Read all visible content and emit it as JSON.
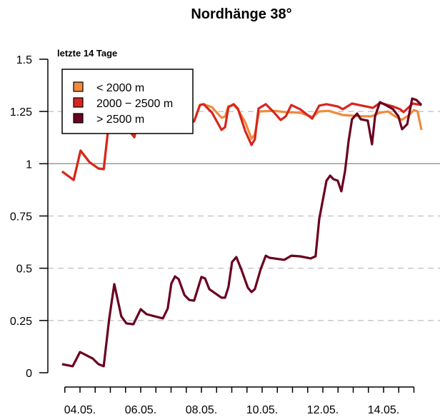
{
  "chart_data": {
    "type": "line",
    "title": "Nordhänge 38°",
    "subtitle": "letzte 14 Tage",
    "xlabel": "",
    "ylabel": "",
    "x_unit": "day of May",
    "xlim": [
      3.5,
      15.0
    ],
    "ylim": [
      0,
      1.5
    ],
    "x_tick_labels": [
      {
        "x": 4,
        "label": "04.05."
      },
      {
        "x": 6,
        "label": "06.05."
      },
      {
        "x": 8,
        "label": "08.05."
      },
      {
        "x": 10,
        "label": "10.05."
      },
      {
        "x": 12,
        "label": "12.05."
      },
      {
        "x": 14,
        "label": "14.05."
      }
    ],
    "y_ticks": [
      {
        "y": 0,
        "label": "0"
      },
      {
        "y": 0.25,
        "label": "0.25"
      },
      {
        "y": 0.5,
        "label": "0.5"
      },
      {
        "y": 0.75,
        "label": "0.75"
      },
      {
        "y": 1,
        "label": "1"
      },
      {
        "y": 1.25,
        "label": "1.25"
      },
      {
        "y": 1.5,
        "label": "1.5"
      }
    ],
    "grid": "dashed horizontal at 0.25, 0.5, 0.75, 1.25; solid reference line at 1",
    "legend_position": "top-left",
    "series": [
      {
        "name": "< 2000 m",
        "color": "#F08A3C",
        "x": [
          3.41,
          3.79,
          4.02,
          4.31,
          4.61,
          4.78,
          5.01,
          5.36,
          5.6,
          5.79,
          5.95,
          6.19,
          6.78,
          7.36,
          7.6,
          7.76,
          7.95,
          8.07,
          8.35,
          8.66,
          8.78,
          8.89,
          9.06,
          9.2,
          9.44,
          9.65,
          9.76,
          9.9,
          10.38,
          10.78,
          11.25,
          11.65,
          11.88,
          12.19,
          12.66,
          13.29,
          13.6,
          13.88,
          14.14,
          14.38,
          14.61,
          14.84,
          15.0,
          15.12,
          15.25
        ],
        "y": [
          0.963,
          0.922,
          1.063,
          1.008,
          0.977,
          0.974,
          1.271,
          1.271,
          1.162,
          1.127,
          1.237,
          1.271,
          1.271,
          1.254,
          1.196,
          1.203,
          1.281,
          1.285,
          1.27,
          1.22,
          1.225,
          1.275,
          1.28,
          1.26,
          1.2,
          1.12,
          1.14,
          1.25,
          1.253,
          1.247,
          1.244,
          1.224,
          1.25,
          1.253,
          1.233,
          1.227,
          1.227,
          1.244,
          1.25,
          1.227,
          1.21,
          1.233,
          1.257,
          1.25,
          1.162
        ]
      },
      {
        "name": "2000 − 2500 m",
        "color": "#D7261E",
        "x": [
          3.41,
          3.79,
          4.02,
          4.31,
          4.61,
          4.78,
          5.01,
          5.36,
          5.6,
          5.79,
          5.95,
          6.19,
          6.78,
          7.36,
          7.6,
          7.76,
          7.95,
          8.07,
          8.35,
          8.66,
          8.78,
          8.89,
          9.06,
          9.2,
          9.44,
          9.65,
          9.76,
          9.88,
          10.12,
          10.38,
          10.61,
          10.78,
          10.96,
          11.25,
          11.65,
          11.88,
          12.12,
          12.49,
          12.66,
          12.96,
          13.29,
          13.65,
          13.88,
          14.31,
          14.54,
          14.66,
          14.96,
          15.25
        ],
        "y": [
          0.963,
          0.922,
          1.063,
          1.008,
          0.977,
          0.974,
          1.271,
          1.271,
          1.162,
          1.127,
          1.237,
          1.271,
          1.271,
          1.254,
          1.196,
          1.203,
          1.281,
          1.285,
          1.244,
          1.162,
          1.175,
          1.271,
          1.285,
          1.264,
          1.158,
          1.09,
          1.117,
          1.264,
          1.285,
          1.247,
          1.209,
          1.227,
          1.281,
          1.261,
          1.216,
          1.278,
          1.285,
          1.274,
          1.261,
          1.288,
          1.278,
          1.267,
          1.291,
          1.274,
          1.261,
          1.247,
          1.288,
          1.281
        ]
      },
      {
        "name": "> 2500 m",
        "color": "#6B0020",
        "x": [
          3.41,
          3.76,
          4.0,
          4.42,
          4.61,
          4.78,
          4.96,
          5.13,
          5.36,
          5.53,
          5.76,
          6.0,
          6.19,
          6.73,
          6.89,
          7.01,
          7.13,
          7.25,
          7.44,
          7.6,
          7.76,
          8.0,
          8.12,
          8.26,
          8.66,
          8.78,
          8.89,
          9.01,
          9.15,
          9.32,
          9.53,
          9.65,
          9.76,
          9.95,
          10.12,
          10.24,
          10.73,
          10.96,
          11.25,
          11.6,
          11.76,
          11.88,
          12.12,
          12.24,
          12.35,
          12.49,
          12.61,
          12.73,
          12.85,
          12.96,
          13.13,
          13.25,
          13.48,
          13.62,
          13.72,
          13.88,
          14.07,
          14.31,
          14.49,
          14.61,
          14.78,
          14.94,
          15.08,
          15.25
        ],
        "y": [
          0.041,
          0.031,
          0.099,
          0.068,
          0.041,
          0.031,
          0.256,
          0.424,
          0.27,
          0.236,
          0.232,
          0.304,
          0.28,
          0.26,
          0.307,
          0.427,
          0.461,
          0.448,
          0.372,
          0.348,
          0.345,
          0.458,
          0.451,
          0.4,
          0.359,
          0.359,
          0.41,
          0.53,
          0.553,
          0.492,
          0.407,
          0.386,
          0.4,
          0.495,
          0.56,
          0.55,
          0.54,
          0.56,
          0.557,
          0.547,
          0.557,
          0.735,
          0.919,
          0.943,
          0.926,
          0.919,
          0.868,
          0.963,
          1.11,
          1.213,
          1.24,
          1.213,
          1.206,
          1.093,
          1.227,
          1.295,
          1.281,
          1.261,
          1.227,
          1.165,
          1.189,
          1.312,
          1.305,
          1.281
        ]
      }
    ]
  }
}
